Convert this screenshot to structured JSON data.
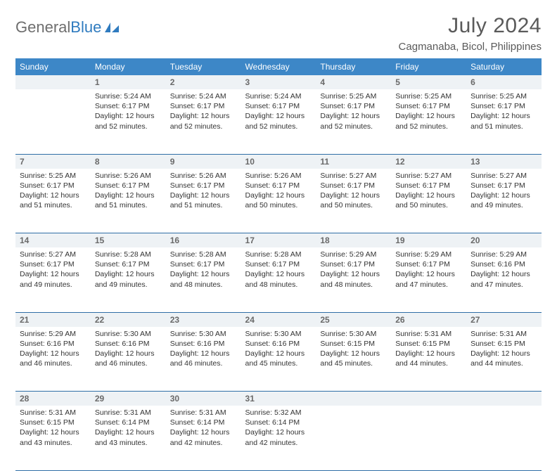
{
  "brand": {
    "part1": "General",
    "part2": "Blue"
  },
  "title": "July 2024",
  "location": "Cagmanaba, Bicol, Philippines",
  "colors": {
    "header_bg": "#3d87c7",
    "header_text": "#ffffff",
    "daynum_bg": "#eef2f5",
    "daynum_text": "#6a6a6a",
    "cell_border": "#2f6ea6",
    "body_text": "#333333",
    "title_text": "#5a5a5a",
    "logo_gray": "#6e6e6e",
    "logo_blue": "#2f7bbf"
  },
  "day_headers": [
    "Sunday",
    "Monday",
    "Tuesday",
    "Wednesday",
    "Thursday",
    "Friday",
    "Saturday"
  ],
  "weeks": [
    [
      {
        "n": "",
        "sunrise": "",
        "sunset": "",
        "daylight": ""
      },
      {
        "n": "1",
        "sunrise": "5:24 AM",
        "sunset": "6:17 PM",
        "daylight": "12 hours and 52 minutes."
      },
      {
        "n": "2",
        "sunrise": "5:24 AM",
        "sunset": "6:17 PM",
        "daylight": "12 hours and 52 minutes."
      },
      {
        "n": "3",
        "sunrise": "5:24 AM",
        "sunset": "6:17 PM",
        "daylight": "12 hours and 52 minutes."
      },
      {
        "n": "4",
        "sunrise": "5:25 AM",
        "sunset": "6:17 PM",
        "daylight": "12 hours and 52 minutes."
      },
      {
        "n": "5",
        "sunrise": "5:25 AM",
        "sunset": "6:17 PM",
        "daylight": "12 hours and 52 minutes."
      },
      {
        "n": "6",
        "sunrise": "5:25 AM",
        "sunset": "6:17 PM",
        "daylight": "12 hours and 51 minutes."
      }
    ],
    [
      {
        "n": "7",
        "sunrise": "5:25 AM",
        "sunset": "6:17 PM",
        "daylight": "12 hours and 51 minutes."
      },
      {
        "n": "8",
        "sunrise": "5:26 AM",
        "sunset": "6:17 PM",
        "daylight": "12 hours and 51 minutes."
      },
      {
        "n": "9",
        "sunrise": "5:26 AM",
        "sunset": "6:17 PM",
        "daylight": "12 hours and 51 minutes."
      },
      {
        "n": "10",
        "sunrise": "5:26 AM",
        "sunset": "6:17 PM",
        "daylight": "12 hours and 50 minutes."
      },
      {
        "n": "11",
        "sunrise": "5:27 AM",
        "sunset": "6:17 PM",
        "daylight": "12 hours and 50 minutes."
      },
      {
        "n": "12",
        "sunrise": "5:27 AM",
        "sunset": "6:17 PM",
        "daylight": "12 hours and 50 minutes."
      },
      {
        "n": "13",
        "sunrise": "5:27 AM",
        "sunset": "6:17 PM",
        "daylight": "12 hours and 49 minutes."
      }
    ],
    [
      {
        "n": "14",
        "sunrise": "5:27 AM",
        "sunset": "6:17 PM",
        "daylight": "12 hours and 49 minutes."
      },
      {
        "n": "15",
        "sunrise": "5:28 AM",
        "sunset": "6:17 PM",
        "daylight": "12 hours and 49 minutes."
      },
      {
        "n": "16",
        "sunrise": "5:28 AM",
        "sunset": "6:17 PM",
        "daylight": "12 hours and 48 minutes."
      },
      {
        "n": "17",
        "sunrise": "5:28 AM",
        "sunset": "6:17 PM",
        "daylight": "12 hours and 48 minutes."
      },
      {
        "n": "18",
        "sunrise": "5:29 AM",
        "sunset": "6:17 PM",
        "daylight": "12 hours and 48 minutes."
      },
      {
        "n": "19",
        "sunrise": "5:29 AM",
        "sunset": "6:17 PM",
        "daylight": "12 hours and 47 minutes."
      },
      {
        "n": "20",
        "sunrise": "5:29 AM",
        "sunset": "6:16 PM",
        "daylight": "12 hours and 47 minutes."
      }
    ],
    [
      {
        "n": "21",
        "sunrise": "5:29 AM",
        "sunset": "6:16 PM",
        "daylight": "12 hours and 46 minutes."
      },
      {
        "n": "22",
        "sunrise": "5:30 AM",
        "sunset": "6:16 PM",
        "daylight": "12 hours and 46 minutes."
      },
      {
        "n": "23",
        "sunrise": "5:30 AM",
        "sunset": "6:16 PM",
        "daylight": "12 hours and 46 minutes."
      },
      {
        "n": "24",
        "sunrise": "5:30 AM",
        "sunset": "6:16 PM",
        "daylight": "12 hours and 45 minutes."
      },
      {
        "n": "25",
        "sunrise": "5:30 AM",
        "sunset": "6:15 PM",
        "daylight": "12 hours and 45 minutes."
      },
      {
        "n": "26",
        "sunrise": "5:31 AM",
        "sunset": "6:15 PM",
        "daylight": "12 hours and 44 minutes."
      },
      {
        "n": "27",
        "sunrise": "5:31 AM",
        "sunset": "6:15 PM",
        "daylight": "12 hours and 44 minutes."
      }
    ],
    [
      {
        "n": "28",
        "sunrise": "5:31 AM",
        "sunset": "6:15 PM",
        "daylight": "12 hours and 43 minutes."
      },
      {
        "n": "29",
        "sunrise": "5:31 AM",
        "sunset": "6:14 PM",
        "daylight": "12 hours and 43 minutes."
      },
      {
        "n": "30",
        "sunrise": "5:31 AM",
        "sunset": "6:14 PM",
        "daylight": "12 hours and 42 minutes."
      },
      {
        "n": "31",
        "sunrise": "5:32 AM",
        "sunset": "6:14 PM",
        "daylight": "12 hours and 42 minutes."
      },
      {
        "n": "",
        "sunrise": "",
        "sunset": "",
        "daylight": ""
      },
      {
        "n": "",
        "sunrise": "",
        "sunset": "",
        "daylight": ""
      },
      {
        "n": "",
        "sunrise": "",
        "sunset": "",
        "daylight": ""
      }
    ]
  ],
  "labels": {
    "sunrise_prefix": "Sunrise: ",
    "sunset_prefix": "Sunset: ",
    "daylight_prefix": "Daylight: "
  }
}
